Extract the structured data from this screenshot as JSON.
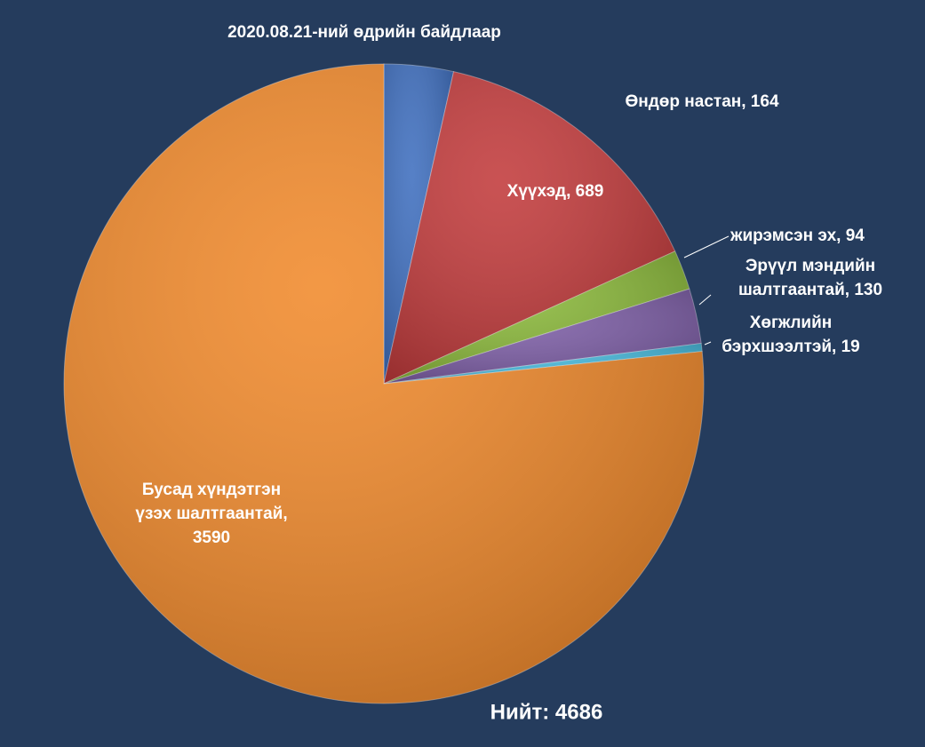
{
  "chart_data": {
    "type": "pie",
    "title": "2020.08.21-ний өдрийн байдлаар",
    "categories": [
      "Өндөр настан, 164",
      "Хүүхэд, 689",
      "жирэмсэн эх, 94",
      "Эрүүл мэндийн\nшалтгаантай, 130",
      "Хөгжлийн\nбэрхшээлтэй, 19",
      "Бусад хүндэтгэн\nүзэх шалтгаантай,\n3590"
    ],
    "values": [
      164,
      689,
      94,
      130,
      19,
      3590
    ],
    "colors": [
      "#3f6fbf",
      "#c23b3c",
      "#8ab83a",
      "#7d5ea6",
      "#45b7d9",
      "#f18a2c"
    ],
    "total_label": "Нийт: 4686"
  }
}
